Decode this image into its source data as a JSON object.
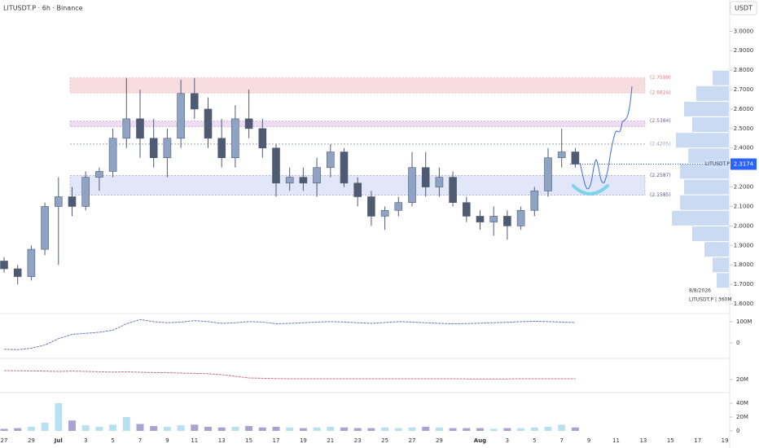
{
  "chart_data": {
    "type": "candlestick",
    "title": "LITUSDT.P · 6h · Binance",
    "currency": "USDT",
    "symbol": "LITUSDT.P",
    "categories": [
      "27",
      null,
      "29",
      null,
      "Jul",
      null,
      "3",
      null,
      "5",
      null,
      "7",
      null,
      "9",
      null,
      "11",
      null,
      "13",
      null,
      "15",
      null,
      "17",
      null,
      "19",
      null,
      "21",
      null,
      "23",
      null,
      "25",
      null,
      "27",
      null,
      "29",
      null,
      null,
      "Aug",
      null,
      "3",
      null,
      "5",
      null,
      "7",
      null,
      "9",
      null,
      "11",
      null,
      "13",
      null,
      "15",
      null,
      "17",
      null,
      "19"
    ],
    "open": [
      1.82,
      1.78,
      1.74,
      1.88,
      2.1,
      2.15,
      2.1,
      2.25,
      2.28,
      2.45,
      2.55,
      2.45,
      2.35,
      2.45,
      2.68,
      2.6,
      2.45,
      2.35,
      2.55,
      2.5,
      2.4,
      2.22,
      2.25,
      2.22,
      2.3,
      2.38,
      2.22,
      2.15,
      2.05,
      2.08,
      2.12,
      2.3,
      2.2,
      2.25,
      2.12,
      2.05,
      2.02,
      2.05,
      2.0,
      2.08,
      2.18,
      2.35,
      2.38,
      null,
      null,
      null,
      null,
      null,
      null,
      null,
      null,
      null,
      null,
      null
    ],
    "high": [
      1.84,
      1.8,
      1.9,
      2.12,
      2.25,
      2.2,
      2.28,
      2.3,
      2.5,
      2.76,
      2.7,
      2.55,
      2.5,
      2.75,
      2.76,
      2.66,
      2.55,
      2.62,
      2.7,
      2.55,
      2.42,
      2.3,
      2.3,
      2.35,
      2.42,
      2.4,
      2.25,
      2.18,
      2.1,
      2.15,
      2.38,
      2.38,
      2.3,
      2.28,
      2.15,
      2.08,
      2.1,
      2.08,
      2.1,
      2.2,
      2.4,
      2.5,
      2.4,
      null,
      null,
      null,
      null,
      null,
      null,
      null,
      null,
      null,
      null,
      null
    ],
    "low": [
      1.76,
      1.7,
      1.72,
      1.85,
      1.8,
      2.05,
      2.08,
      2.18,
      2.25,
      2.4,
      2.35,
      2.3,
      2.25,
      2.4,
      2.55,
      2.4,
      2.3,
      2.3,
      2.45,
      2.35,
      2.15,
      2.18,
      2.18,
      2.15,
      2.25,
      2.2,
      2.1,
      2.0,
      1.98,
      2.05,
      2.1,
      2.15,
      2.15,
      2.1,
      2.02,
      1.98,
      1.95,
      1.93,
      1.98,
      2.05,
      2.15,
      2.3,
      2.3,
      null,
      null,
      null,
      null,
      null,
      null,
      null,
      null,
      null,
      null,
      null
    ],
    "close": [
      1.78,
      1.74,
      1.88,
      2.1,
      2.15,
      2.1,
      2.25,
      2.28,
      2.45,
      2.55,
      2.45,
      2.35,
      2.45,
      2.68,
      2.6,
      2.45,
      2.35,
      2.55,
      2.5,
      2.4,
      2.22,
      2.25,
      2.22,
      2.3,
      2.38,
      2.22,
      2.15,
      2.05,
      2.08,
      2.12,
      2.3,
      2.2,
      2.25,
      2.12,
      2.05,
      2.02,
      2.05,
      2.0,
      2.08,
      2.18,
      2.35,
      2.38,
      2.3174,
      null,
      null,
      null,
      null,
      null,
      null,
      null,
      null,
      null,
      null,
      null
    ],
    "up_color": "#8fa3c4",
    "down_color": "#4f5b73",
    "ylim": [
      1.55,
      3.16
    ],
    "yticks": [
      {
        "value": 1.6,
        "label": "1.6000"
      },
      {
        "value": 1.7,
        "label": "1.7000"
      },
      {
        "value": 1.8,
        "label": "1.8000"
      },
      {
        "value": 1.9,
        "label": "1.9000"
      },
      {
        "value": 2.0,
        "label": "2.0000"
      },
      {
        "value": 2.1,
        "label": "2.1000"
      },
      {
        "value": 2.2,
        "label": "2.2000"
      },
      {
        "value": 2.3,
        "label": "2.3000"
      },
      {
        "value": 2.4,
        "label": "2.4000"
      },
      {
        "value": 2.5,
        "label": "2.5000"
      },
      {
        "value": 2.6,
        "label": "2.6000"
      },
      {
        "value": 2.7,
        "label": "2.7000"
      },
      {
        "value": 2.8,
        "label": "2.8000"
      },
      {
        "value": 2.9,
        "label": "2.9000"
      },
      {
        "value": 3.0,
        "label": "3.0000"
      }
    ],
    "last_price": {
      "value": 2.3174,
      "label": "2.3174"
    },
    "zones": [
      {
        "top": {
          "value": 2.7599,
          "label": "(2.7599)"
        },
        "bottom": {
          "value": 2.6824,
          "label": "(2.6824)"
        },
        "color": "#f4c7cc",
        "label_color": "#e57f8c"
      },
      {
        "top": {
          "value": 2.5384,
          "label": "(2.5384)"
        },
        "bottom": 2.51,
        "color": "#e6c6ec",
        "label_color": "#7a5fa0"
      },
      {
        "top": {
          "value": 2.2587,
          "label": "(2.2587)"
        },
        "bottom": {
          "value": 2.1585,
          "label": "(2.1585)"
        },
        "color": "#cfd5f5",
        "label_color": "#55617f"
      }
    ],
    "levels": [
      {
        "value": 2.4205,
        "label": "(2.4205)",
        "color": "#9aa3b5"
      }
    ],
    "volume_profile": {
      "prices": [
        1.72,
        1.8,
        1.88,
        1.96,
        2.04,
        2.12,
        2.2,
        2.28,
        2.36,
        2.44,
        2.52,
        2.6,
        2.68,
        2.76
      ],
      "values": [
        15,
        20,
        30,
        45,
        70,
        60,
        55,
        60,
        50,
        65,
        45,
        55,
        40,
        20
      ],
      "color": "#9dbbe8"
    },
    "indicator1": {
      "values": [
        -30,
        -32,
        -25,
        -10,
        20,
        40,
        45,
        50,
        60,
        90,
        110,
        100,
        95,
        98,
        105,
        100,
        92,
        95,
        100,
        98,
        90,
        92,
        95,
        98,
        100,
        98,
        95,
        92,
        96,
        100,
        98,
        95,
        92,
        90,
        91,
        93,
        95,
        97,
        100,
        102,
        100,
        98,
        96,
        null,
        null,
        null,
        null,
        null,
        null,
        null,
        null,
        null,
        null,
        null
      ],
      "ylim": [
        -73,
        138
      ],
      "yticks": [
        0,
        {
          "value": 100,
          "label": "100M"
        }
      ],
      "color": "#6b7fb8"
    },
    "indicator2": {
      "values": [
        25.5,
        25.4,
        25.3,
        25.2,
        25,
        25.2,
        25,
        24.8,
        24.6,
        24.8,
        24.5,
        24.3,
        24.2,
        24,
        23.8,
        23.6,
        23,
        22,
        21,
        20.8,
        20.6,
        20.5,
        20.5,
        20.5,
        20.5,
        20.5,
        20.5,
        20.5,
        20.5,
        20.5,
        20.5,
        20.5,
        20.5,
        20.5,
        20.4,
        20.4,
        20.4,
        20.4,
        20.5,
        20.5,
        20.5,
        20.5,
        20.5,
        null,
        null,
        null,
        null,
        null,
        null,
        null,
        null,
        null,
        null,
        null
      ],
      "ylim": [
        12,
        33
      ],
      "yticks": [
        {
          "value": 20,
          "label": "20M"
        }
      ],
      "color": "#d46a8a"
    },
    "volume": {
      "values": [
        3,
        4,
        6,
        12,
        40,
        15,
        8,
        6,
        9,
        20,
        10,
        7,
        6,
        8,
        9,
        6,
        5,
        6,
        7,
        5,
        6,
        5,
        4,
        5,
        6,
        5,
        4,
        4,
        5,
        4,
        5,
        6,
        5,
        4,
        4,
        4,
        3,
        4,
        4,
        5,
        6,
        9,
        5,
        null,
        null,
        null,
        null,
        null,
        null,
        null,
        null,
        null,
        null,
        null
      ],
      "ylim": [
        0,
        50
      ],
      "yticks": [
        0,
        {
          "value": 20,
          "label": "20M"
        },
        {
          "value": 40,
          "label": "40M"
        }
      ],
      "color": "#a9a3cf"
    },
    "footer_date": "8/8/2026",
    "footer_info": "LITUSDT.P | 360M"
  }
}
